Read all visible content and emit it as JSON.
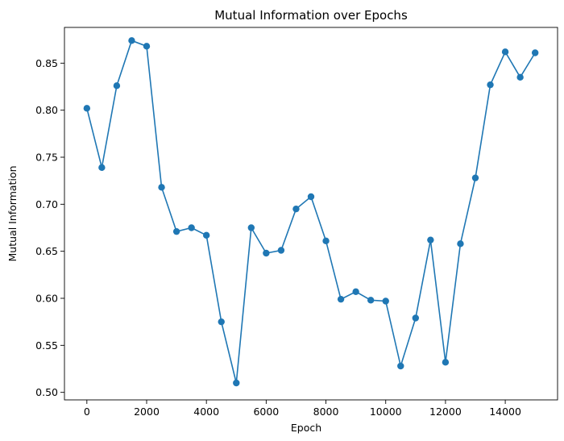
{
  "chart_data": {
    "type": "line",
    "title": "Mutual Information over Epochs",
    "xlabel": "Epoch",
    "ylabel": "Mutual Information",
    "xlim": [
      -750,
      15750
    ],
    "ylim": [
      0.492,
      0.888
    ],
    "xticks": [
      0,
      2000,
      4000,
      6000,
      8000,
      10000,
      12000,
      14000
    ],
    "yticks": [
      0.5,
      0.55,
      0.6,
      0.65,
      0.7,
      0.75,
      0.8,
      0.85
    ],
    "grid": false,
    "line_color": "#1f77b4",
    "marker": "circle",
    "series": [
      {
        "x": [
          0,
          500,
          1000,
          1500,
          2000,
          2500,
          3000,
          3500,
          4000,
          4500,
          5000,
          5500,
          6000,
          6500,
          7000,
          7500,
          8000,
          8500,
          9000,
          9500,
          10000,
          10500,
          11000,
          11500,
          12000,
          12500,
          13000,
          13500,
          14000,
          14500,
          15000
        ],
        "y": [
          0.802,
          0.739,
          0.826,
          0.874,
          0.868,
          0.718,
          0.671,
          0.675,
          0.667,
          0.575,
          0.51,
          0.675,
          0.648,
          0.651,
          0.695,
          0.708,
          0.661,
          0.599,
          0.607,
          0.598,
          0.597,
          0.528,
          0.579,
          0.662,
          0.532,
          0.658,
          0.728,
          0.827,
          0.862,
          0.835,
          0.861
        ]
      }
    ]
  }
}
